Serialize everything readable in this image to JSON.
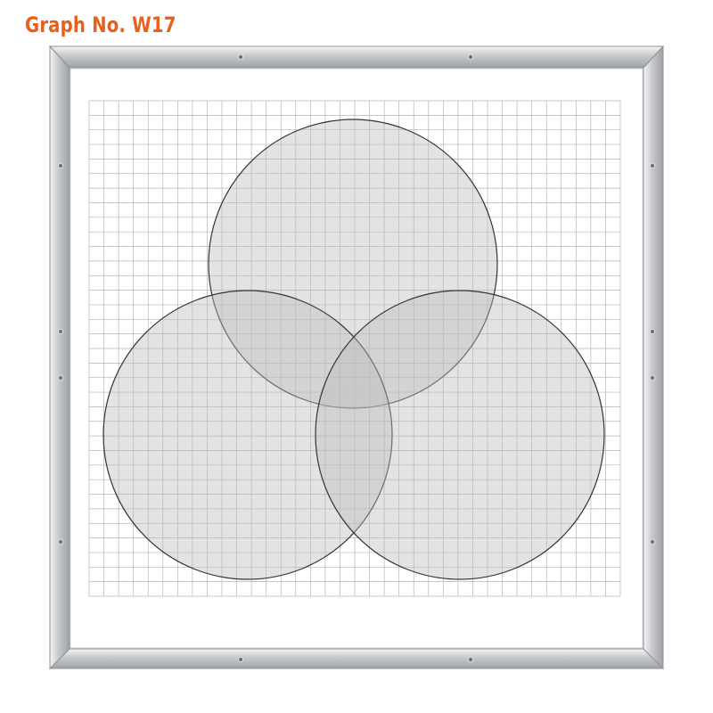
{
  "title": {
    "text": "Graph No. W17",
    "color": "#e8601c"
  },
  "frame": {
    "color": "#c8cacc",
    "edge_dark": "#9a9c9f",
    "edge_light": "#eef0f2"
  },
  "grid": {
    "minor_color": "#b4b4b4",
    "columns": 36,
    "rows": 34
  },
  "circles": {
    "stroke": "#333333",
    "fill": "#bdbdbd",
    "fill_opacity": 0.42,
    "count": 3
  }
}
